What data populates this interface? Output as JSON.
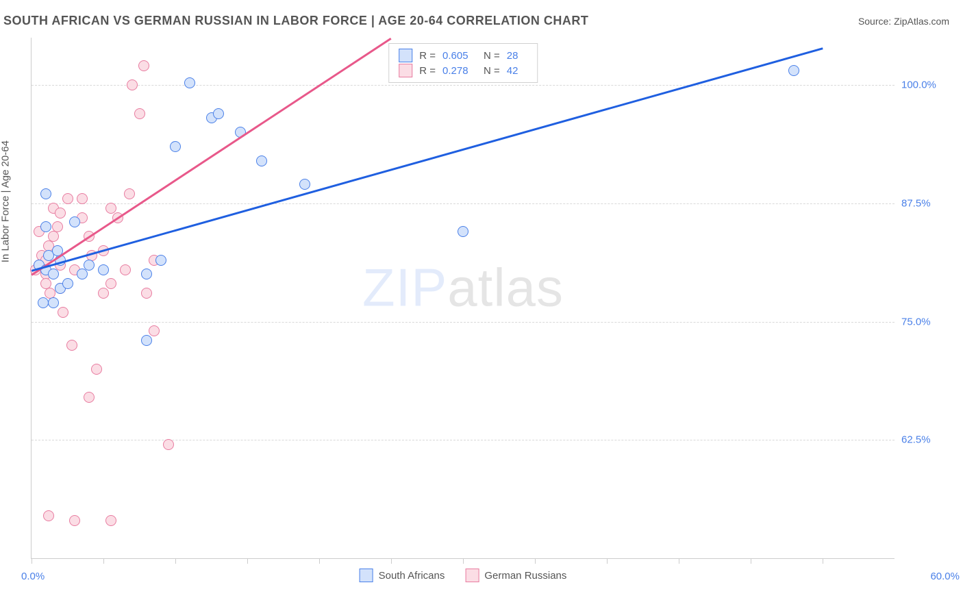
{
  "header": {
    "title": "SOUTH AFRICAN VS GERMAN RUSSIAN IN LABOR FORCE | AGE 20-64 CORRELATION CHART",
    "source": "Source: ZipAtlas.com"
  },
  "chart": {
    "type": "scatter",
    "watermark": {
      "part1": "ZIP",
      "part2": "atlas"
    },
    "ylabel": "In Labor Force | Age 20-64",
    "xlim": [
      0,
      60
    ],
    "ylim": [
      50,
      105
    ],
    "x_ticks": [
      0,
      5,
      10,
      15,
      20,
      25,
      30,
      35,
      40,
      45,
      50,
      55
    ],
    "x_tick_labels": {
      "min": "0.0%",
      "max": "60.0%"
    },
    "y_grid": [
      {
        "value": 62.5,
        "label": "62.5%"
      },
      {
        "value": 75.0,
        "label": "75.0%"
      },
      {
        "value": 87.5,
        "label": "87.5%"
      },
      {
        "value": 100.0,
        "label": "100.0%"
      }
    ],
    "colors": {
      "series_a": {
        "fill": "#d3e2fb",
        "stroke": "#4a80e8"
      },
      "series_b": {
        "fill": "#fbdde5",
        "stroke": "#e87ca0"
      },
      "trend_a": "#1f5fe0",
      "trend_b": "#e8588a",
      "axis_label": "#4a80e8",
      "grid": "#d8d8d8",
      "background": "#ffffff"
    },
    "r_legend": {
      "rows": [
        {
          "series": "a",
          "r_label": "R =",
          "r_value": "0.605",
          "n_label": "N =",
          "n_value": "28"
        },
        {
          "series": "b",
          "r_label": "R =",
          "r_value": "0.278",
          "n_label": "N =",
          "n_value": "42"
        }
      ]
    },
    "series_legend": [
      {
        "series": "a",
        "label": "South Africans"
      },
      {
        "series": "b",
        "label": "German Russians"
      }
    ],
    "trend_lines": {
      "a": {
        "x1": 0,
        "y1": 80.5,
        "x2": 55,
        "y2": 104
      },
      "b": {
        "x1": 0,
        "y1": 80.0,
        "x2": 25,
        "y2": 105
      }
    },
    "points_a": [
      [
        0.5,
        81
      ],
      [
        1,
        80.5
      ],
      [
        1.2,
        82
      ],
      [
        1.5,
        80
      ],
      [
        2,
        81.5
      ],
      [
        1,
        85
      ],
      [
        1.8,
        82.5
      ],
      [
        0.8,
        77
      ],
      [
        2,
        78.5
      ],
      [
        3.5,
        80
      ],
      [
        4,
        81
      ],
      [
        2.5,
        79
      ],
      [
        1.5,
        77
      ],
      [
        3,
        85.5
      ],
      [
        1,
        88.5
      ],
      [
        5,
        80.5
      ],
      [
        8,
        80
      ],
      [
        8,
        73
      ],
      [
        9,
        81.5
      ],
      [
        10,
        93.5
      ],
      [
        11,
        100.2
      ],
      [
        12.5,
        96.5
      ],
      [
        13,
        97
      ],
      [
        14.5,
        95
      ],
      [
        16,
        92
      ],
      [
        19,
        89.5
      ],
      [
        30,
        84.5
      ],
      [
        53,
        101.5
      ]
    ],
    "points_b": [
      [
        0.3,
        80.5
      ],
      [
        0.5,
        81
      ],
      [
        0.7,
        82
      ],
      [
        1,
        80
      ],
      [
        1,
        81.5
      ],
      [
        1.2,
        83
      ],
      [
        1.3,
        78
      ],
      [
        1.5,
        84
      ],
      [
        1.5,
        87
      ],
      [
        1.8,
        85
      ],
      [
        2,
        81
      ],
      [
        2,
        78.5
      ],
      [
        2.2,
        76
      ],
      [
        2.5,
        88
      ],
      [
        2.8,
        72.5
      ],
      [
        3,
        80.5
      ],
      [
        3.5,
        88
      ],
      [
        3.5,
        86
      ],
      [
        4,
        84
      ],
      [
        4,
        67
      ],
      [
        4.2,
        82
      ],
      [
        4.5,
        70
      ],
      [
        5,
        78
      ],
      [
        5,
        82.5
      ],
      [
        5.5,
        87
      ],
      [
        5.5,
        54
      ],
      [
        6,
        86
      ],
      [
        6.5,
        80.5
      ],
      [
        7,
        100
      ],
      [
        7.5,
        97
      ],
      [
        7.8,
        102
      ],
      [
        8,
        78
      ],
      [
        8.5,
        74
      ],
      [
        8.5,
        81.5
      ],
      [
        9.5,
        62
      ],
      [
        3,
        54
      ],
      [
        1.2,
        54.5
      ],
      [
        5.5,
        79
      ],
      [
        6.8,
        88.5
      ],
      [
        2,
        86.5
      ],
      [
        0.5,
        84.5
      ],
      [
        1,
        79
      ]
    ]
  }
}
